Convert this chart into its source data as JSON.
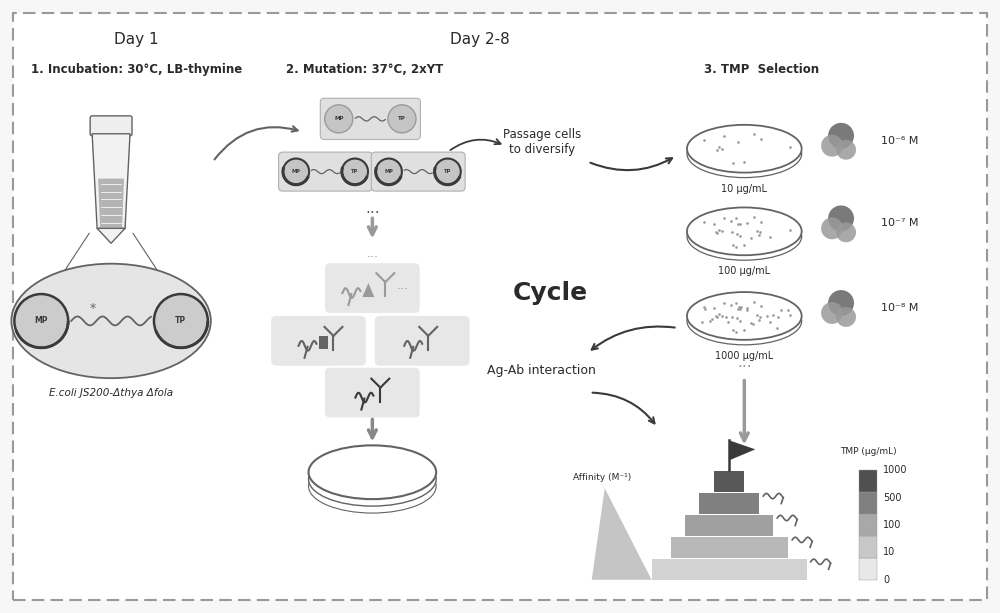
{
  "bg_color": "#f7f7f7",
  "day1_label": "Day 1",
  "day28_label": "Day 2-8",
  "step1_label": "1. Incubation: 30°C, LB-thymine",
  "step2_label": "2. Mutation: 37°C, 2xYT",
  "step3_label": "3. TMP  Selection",
  "ecoli_label": "E.coli JS200-Δthya Δfola",
  "passage_label": "Passage cells\nto diversify",
  "cycle_label": "Cycle",
  "agab_label": "Ag-Ab interaction",
  "affinity_label": "Affinity (M⁻¹)",
  "tmp_label": "TMP (μg/mL)",
  "tmp_values": [
    "1000",
    "500",
    "100",
    "10",
    "0"
  ],
  "conc_labels": [
    "10 μg/mL",
    "100 μg/mL",
    "1000 μg/mL"
  ],
  "exp_labels": [
    "10⁻⁶ M",
    "10⁻⁷ M",
    "10⁻⁸ M"
  ],
  "gray_light": "#d5d5d5",
  "gray_mid": "#9a9a9a",
  "gray_dark": "#636363",
  "gray_darkest": "#3a3a3a",
  "text_color": "#2a2a2a"
}
